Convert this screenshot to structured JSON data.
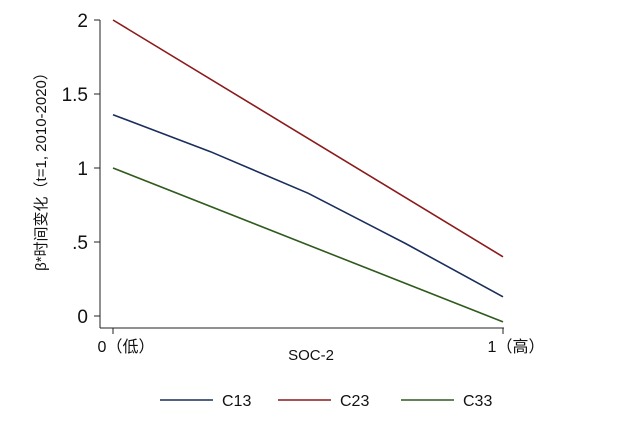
{
  "chart_data": {
    "type": "line",
    "x_ticks": [
      {
        "value": 0,
        "label": "0（低）"
      },
      {
        "value": 1,
        "label": "1（高）"
      }
    ],
    "y_ticks": [
      0,
      0.5,
      1,
      1.5,
      2
    ],
    "y_tick_labels": [
      "0",
      ".5",
      "1",
      "1.5",
      "2"
    ],
    "xlabel": "SOC-2",
    "ylabel": "β*时间变化（t=1, 2010-2020）",
    "xlim": [
      0,
      1
    ],
    "ylim": [
      0,
      2
    ],
    "grid": false,
    "legend_position": "bottom",
    "series": [
      {
        "name": "C13",
        "color": "#1a2e5c",
        "x": [
          0,
          0.25,
          0.5,
          0.75,
          1
        ],
        "y": [
          1.36,
          1.11,
          0.83,
          0.49,
          0.13
        ]
      },
      {
        "name": "C23",
        "color": "#8b1a1a",
        "x": [
          0,
          1
        ],
        "y": [
          2.0,
          0.4
        ]
      },
      {
        "name": "C33",
        "color": "#2f5a1e",
        "x": [
          0,
          1
        ],
        "y": [
          1.0,
          -0.04
        ]
      }
    ]
  }
}
